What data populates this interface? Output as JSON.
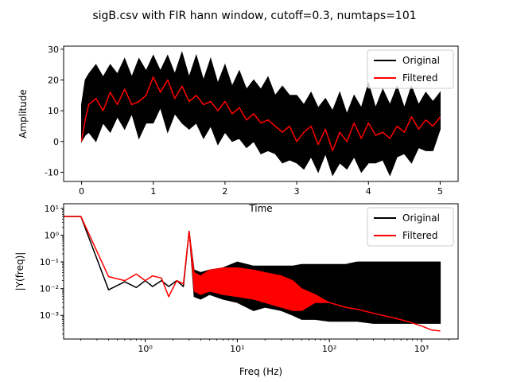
{
  "suptitle": "sigB.csv with FIR hann window, cutoff=0.3, numtaps=101",
  "colors": {
    "original": "#000000",
    "filtered": "#ff0000"
  },
  "chart_data": [
    {
      "type": "line",
      "panel": "top",
      "xlabel": "Time",
      "ylabel": "Amplitude",
      "xlim": [
        -0.25,
        5.25
      ],
      "ylim": [
        -13,
        31
      ],
      "xticks": [
        0,
        1,
        2,
        3,
        4,
        5
      ],
      "yticks": [
        -10,
        0,
        10,
        20,
        30
      ],
      "legend_placement": "top-right",
      "series": [
        {
          "name": "Original",
          "color": "#000000",
          "x": [
            0,
            0.05,
            0.1,
            0.2,
            0.3,
            0.4,
            0.5,
            0.6,
            0.7,
            0.8,
            0.9,
            1.0,
            1.1,
            1.2,
            1.3,
            1.4,
            1.5,
            1.6,
            1.7,
            1.8,
            1.9,
            2.0,
            2.1,
            2.2,
            2.3,
            2.4,
            2.5,
            2.6,
            2.7,
            2.8,
            2.9,
            3.0,
            3.1,
            3.2,
            3.3,
            3.4,
            3.5,
            3.6,
            3.7,
            3.8,
            3.9,
            4.0,
            4.1,
            4.2,
            4.3,
            4.4,
            4.5,
            4.6,
            4.7,
            4.8,
            4.9,
            5.0
          ],
          "upper": [
            12,
            20,
            22,
            25,
            21,
            25,
            22,
            27,
            21,
            27,
            23,
            28,
            23,
            28,
            22,
            29,
            21,
            28,
            20,
            27,
            19,
            25,
            18,
            23,
            17,
            20,
            17,
            21,
            15,
            18,
            15,
            15,
            12,
            16,
            11,
            14,
            10,
            16,
            9,
            15,
            11,
            19,
            11,
            17,
            12,
            18,
            11,
            18,
            12,
            16,
            13,
            16
          ],
          "lower": [
            0,
            2,
            3,
            0,
            6,
            3,
            8,
            4,
            9,
            1,
            6,
            6,
            11,
            3,
            9,
            6,
            4,
            6,
            1,
            5,
            -1,
            3,
            0,
            1,
            -2,
            0,
            -4,
            -3,
            -4,
            -7,
            -6,
            -7,
            -9,
            -5,
            -10,
            -4,
            -11,
            -7,
            -9,
            -5,
            -10,
            -7,
            -7,
            -6,
            -11,
            -5,
            -4,
            -7,
            -2,
            -3,
            -3,
            4
          ]
        },
        {
          "name": "Filtered",
          "color": "#ff0000",
          "x": [
            0,
            0.05,
            0.1,
            0.2,
            0.3,
            0.4,
            0.5,
            0.6,
            0.7,
            0.8,
            0.9,
            1.0,
            1.1,
            1.2,
            1.3,
            1.4,
            1.5,
            1.6,
            1.7,
            1.8,
            1.9,
            2.0,
            2.1,
            2.2,
            2.3,
            2.4,
            2.5,
            2.6,
            2.7,
            2.8,
            2.9,
            3.0,
            3.1,
            3.2,
            3.3,
            3.4,
            3.5,
            3.6,
            3.7,
            3.8,
            3.9,
            4.0,
            4.1,
            4.2,
            4.3,
            4.4,
            4.5,
            4.6,
            4.7,
            4.8,
            4.9,
            5.0
          ],
          "y": [
            0,
            7,
            12,
            14,
            10,
            16,
            12,
            17,
            12,
            13,
            15,
            21,
            16,
            20,
            14,
            18,
            13,
            15,
            12,
            13,
            10,
            13,
            9,
            11,
            7,
            9,
            6,
            7,
            5,
            3,
            5,
            0,
            3,
            5,
            -1,
            4,
            -3,
            3,
            0,
            6,
            1,
            6,
            2,
            3,
            1,
            5,
            3,
            8,
            4,
            7,
            5,
            8
          ]
        }
      ]
    },
    {
      "type": "line",
      "panel": "bottom",
      "xlabel": "Freq (Hz)",
      "ylabel": "|Y(freq)|",
      "xscale": "log",
      "yscale": "log",
      "xlim": [
        0.13,
        2500
      ],
      "ylim": [
        0.00013,
        15
      ],
      "xticks": [
        {
          "value": 1,
          "label": "10⁰"
        },
        {
          "value": 10,
          "label": "10¹"
        },
        {
          "value": 100,
          "label": "10²"
        },
        {
          "value": 1000,
          "label": "10³"
        }
      ],
      "yticks": [
        {
          "value": 0.001,
          "label": "10⁻³"
        },
        {
          "value": 0.01,
          "label": "10⁻²"
        },
        {
          "value": 0.1,
          "label": "10⁻¹"
        },
        {
          "value": 1,
          "label": "10⁰"
        },
        {
          "value": 10,
          "label": "10¹"
        }
      ],
      "legend_placement": "top-right",
      "series": [
        {
          "name": "Original",
          "color": "#000000",
          "x": [
            0.13,
            0.2,
            0.4,
            0.6,
            0.8,
            1.0,
            1.2,
            1.5,
            1.8,
            2.2,
            2.6,
            3.0,
            3.4,
            4.0,
            5,
            7,
            10,
            15,
            20,
            30,
            40,
            50,
            70,
            100,
            150,
            200,
            300,
            500,
            700,
            1000,
            1300,
            1600
          ],
          "y": [
            5,
            5,
            0.009,
            0.018,
            0.011,
            0.02,
            0.012,
            0.02,
            0.012,
            0.02,
            0.012,
            1.4,
            0.02,
            0.015,
            0.025,
            0.02,
            0.02,
            0.018,
            0.02,
            0.02,
            0.02,
            0.025,
            0.025,
            0.03,
            0.028,
            0.03,
            0.03,
            0.03,
            0.03,
            0.03,
            0.03,
            0.03
          ],
          "lower": [
            5,
            5,
            0.009,
            0.018,
            0.011,
            0.02,
            0.012,
            0.02,
            0.012,
            0.02,
            0.012,
            1.4,
            0.005,
            0.004,
            0.006,
            0.004,
            0.003,
            0.0015,
            0.002,
            0.0015,
            0.001,
            0.0007,
            0.0007,
            0.0006,
            0.0006,
            0.0006,
            0.0005,
            0.0005,
            0.0005,
            0.0005,
            0.0005,
            0.0005
          ],
          "upper": [
            5,
            5,
            0.009,
            0.018,
            0.011,
            0.02,
            0.012,
            0.02,
            0.012,
            0.02,
            0.012,
            1.4,
            0.05,
            0.04,
            0.05,
            0.06,
            0.1,
            0.07,
            0.07,
            0.07,
            0.07,
            0.08,
            0.08,
            0.08,
            0.08,
            0.1,
            0.1,
            0.1,
            0.1,
            0.1,
            0.1,
            0.1
          ]
        },
        {
          "name": "Filtered",
          "color": "#ff0000",
          "x": [
            0.13,
            0.2,
            0.4,
            0.6,
            0.8,
            1.0,
            1.2,
            1.5,
            1.8,
            2.2,
            2.6,
            3.0,
            3.4,
            4.0,
            5,
            7,
            10,
            15,
            20,
            30,
            40,
            50,
            70,
            100,
            150,
            200,
            300,
            500,
            700,
            1000,
            1300,
            1600
          ],
          "y": [
            5,
            5,
            0.028,
            0.02,
            0.035,
            0.02,
            0.03,
            0.025,
            0.005,
            0.02,
            0.015,
            1.4,
            0.02,
            0.015,
            0.025,
            0.015,
            0.02,
            0.015,
            0.01,
            0.007,
            0.004,
            0.003,
            0.004,
            0.003,
            0.002,
            0.0017,
            0.0012,
            0.0008,
            0.0006,
            0.0004,
            0.00028,
            0.00026
          ],
          "lower": [
            5,
            5,
            0.028,
            0.02,
            0.035,
            0.02,
            0.03,
            0.025,
            0.005,
            0.02,
            0.015,
            1.4,
            0.008,
            0.006,
            0.008,
            0.006,
            0.005,
            0.004,
            0.003,
            0.002,
            0.0015,
            0.0015,
            0.003,
            0.003,
            0.002,
            0.0017,
            0.0012,
            0.0008,
            0.0006,
            0.0004,
            0.00028,
            0.00026
          ],
          "upper": [
            5,
            5,
            0.028,
            0.02,
            0.035,
            0.02,
            0.03,
            0.025,
            0.005,
            0.02,
            0.015,
            1.4,
            0.04,
            0.03,
            0.05,
            0.06,
            0.06,
            0.05,
            0.04,
            0.03,
            0.02,
            0.01,
            0.006,
            0.003,
            0.002,
            0.0017,
            0.0012,
            0.0008,
            0.0006,
            0.0004,
            0.00028,
            0.00026
          ]
        }
      ]
    }
  ]
}
